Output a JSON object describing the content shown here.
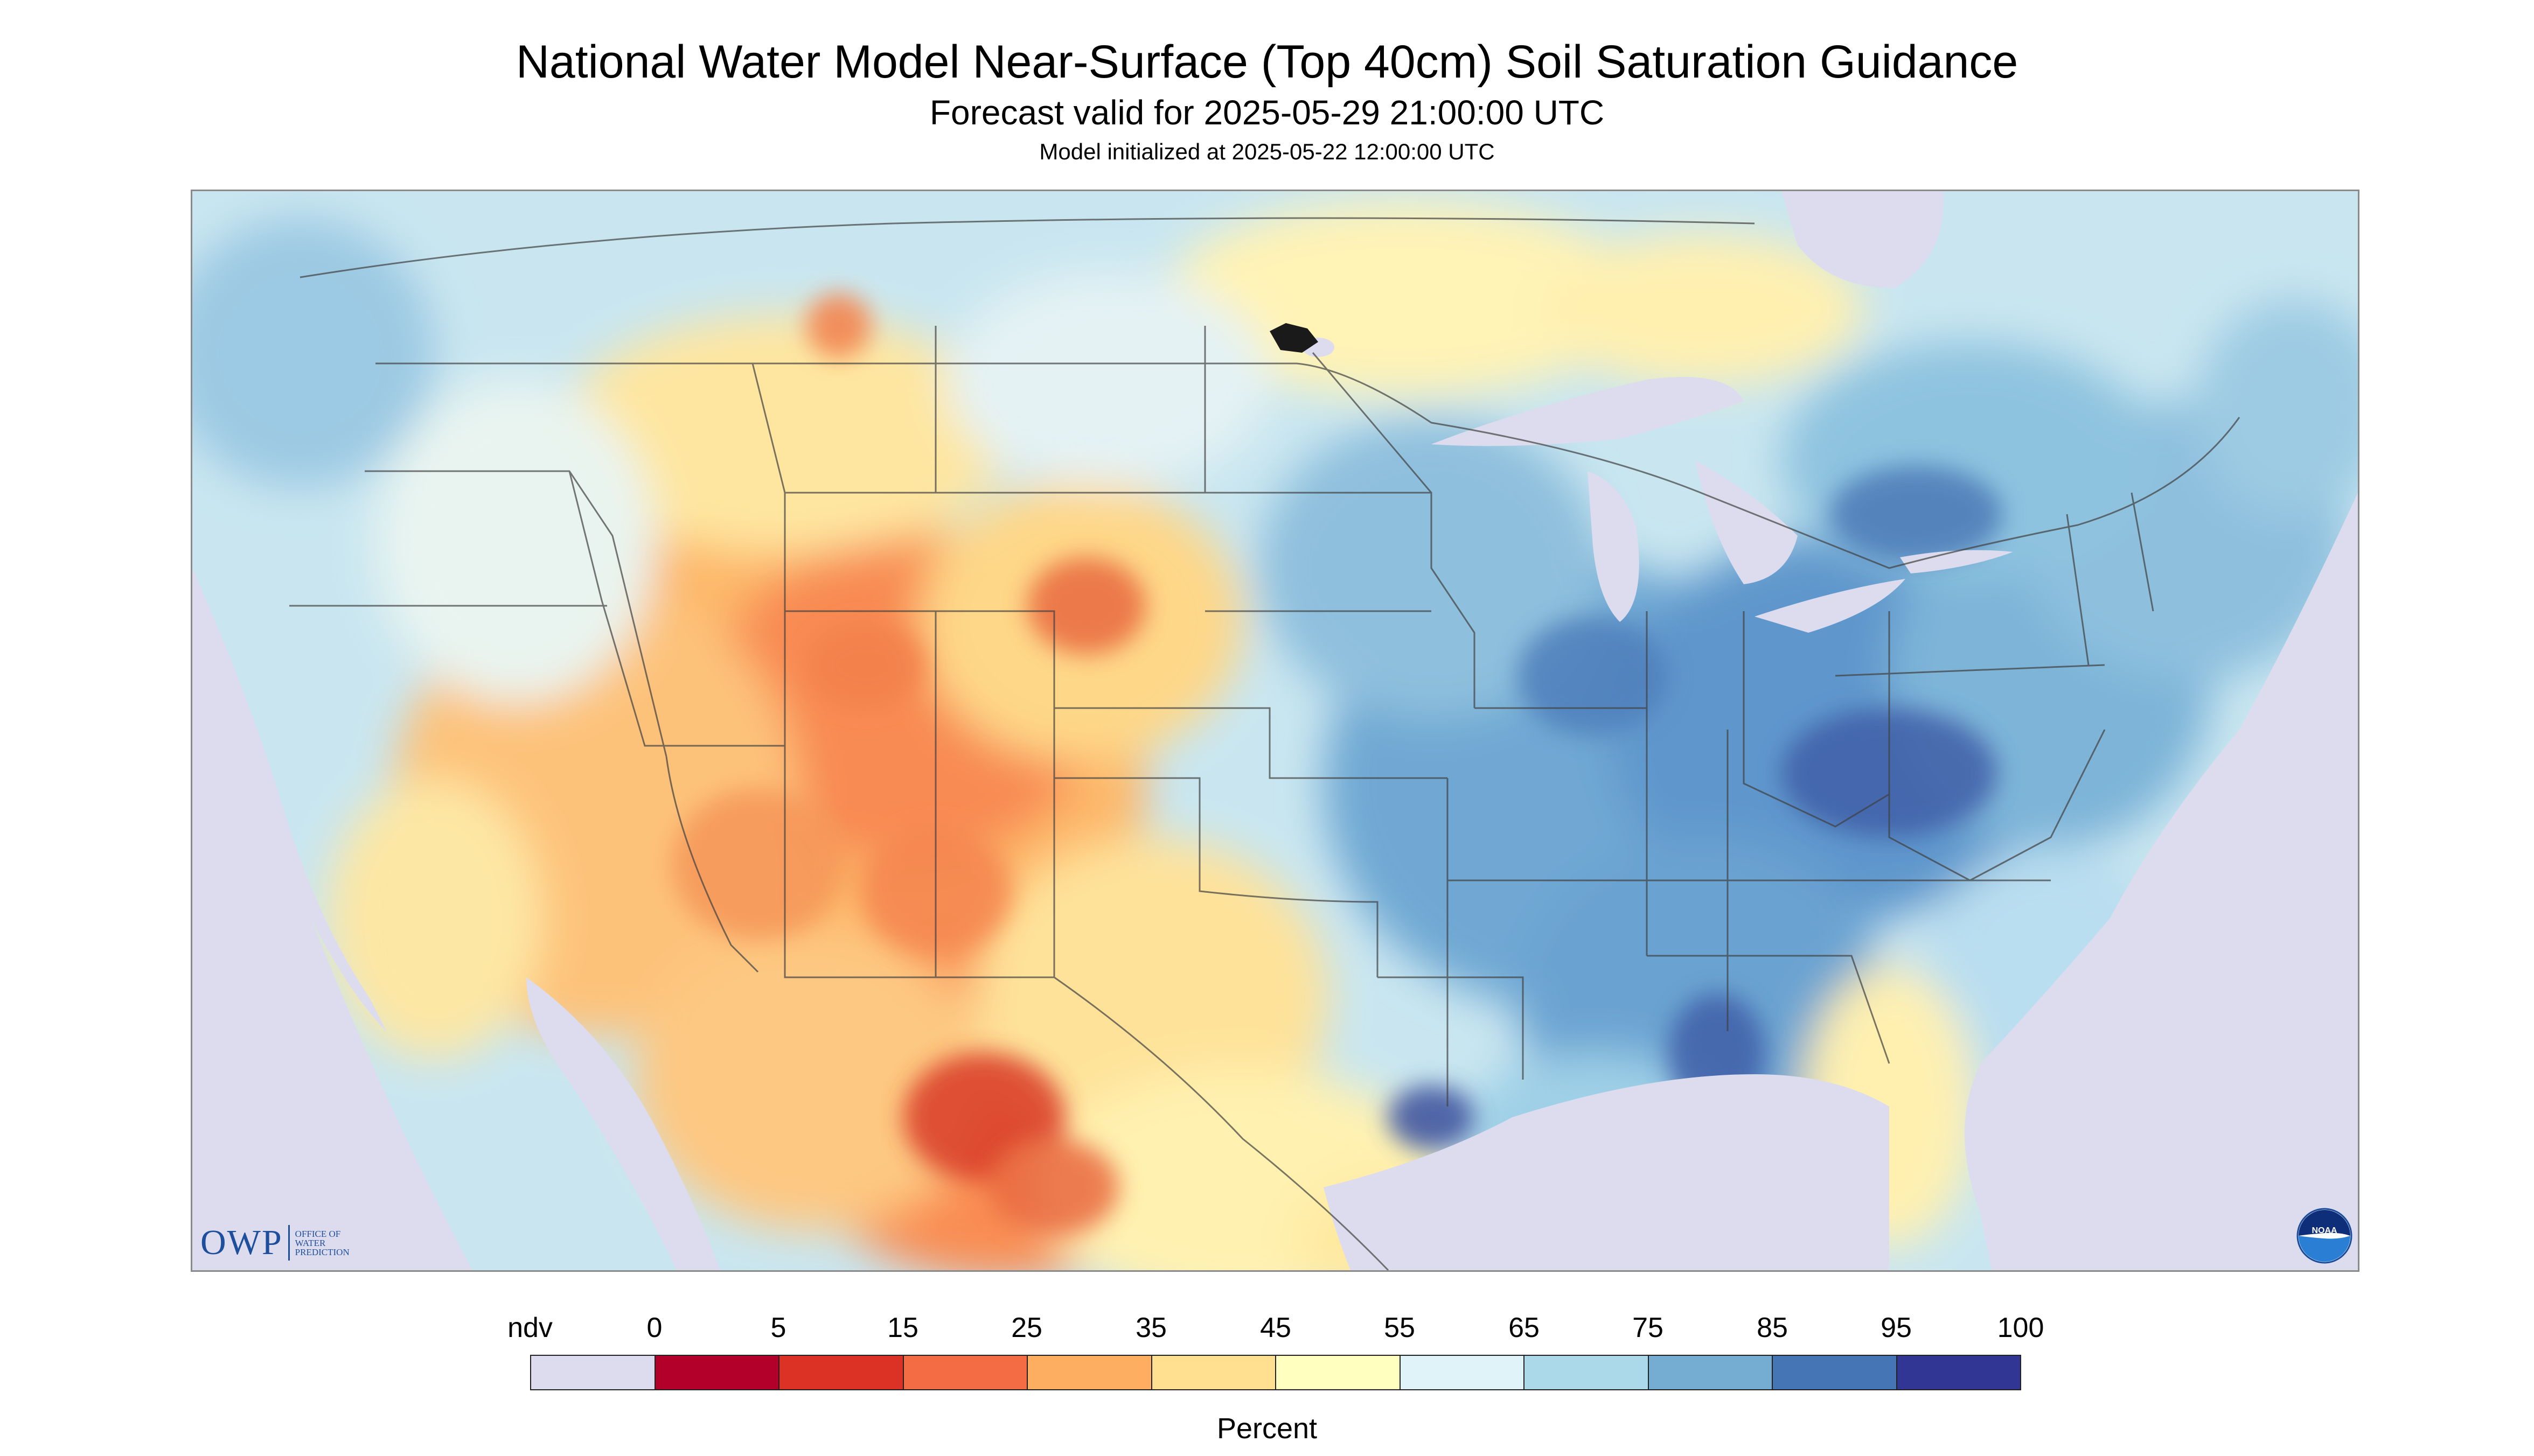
{
  "title": "National Water Model Near-Surface (Top 40cm) Soil Saturation Guidance",
  "subtitle": "Forecast valid for 2025-05-29 21:00:00 UTC",
  "init_line": "Model initialized at 2025-05-22 12:00:00 UTC",
  "logos": {
    "owp_word": "OWP",
    "owp_sub": "OFFICE OF\nWATER\nPREDICTION",
    "noaa": "NOAA"
  },
  "legend": {
    "unit": "Percent",
    "ticks": [
      "ndv",
      "0",
      "5",
      "15",
      "25",
      "35",
      "45",
      "55",
      "65",
      "75",
      "85",
      "95",
      "100"
    ],
    "colors": [
      "#dcdcee",
      "#b2002a",
      "#dc3226",
      "#f46c43",
      "#fdae61",
      "#fee090",
      "#ffffbf",
      "#e0f3f8",
      "#abd9e9",
      "#74add1",
      "#4575b4",
      "#313695"
    ]
  },
  "map": {
    "nodata_color": "#dcdcee",
    "water_color": "#dcdcee",
    "boundary_color": "#404040"
  }
}
